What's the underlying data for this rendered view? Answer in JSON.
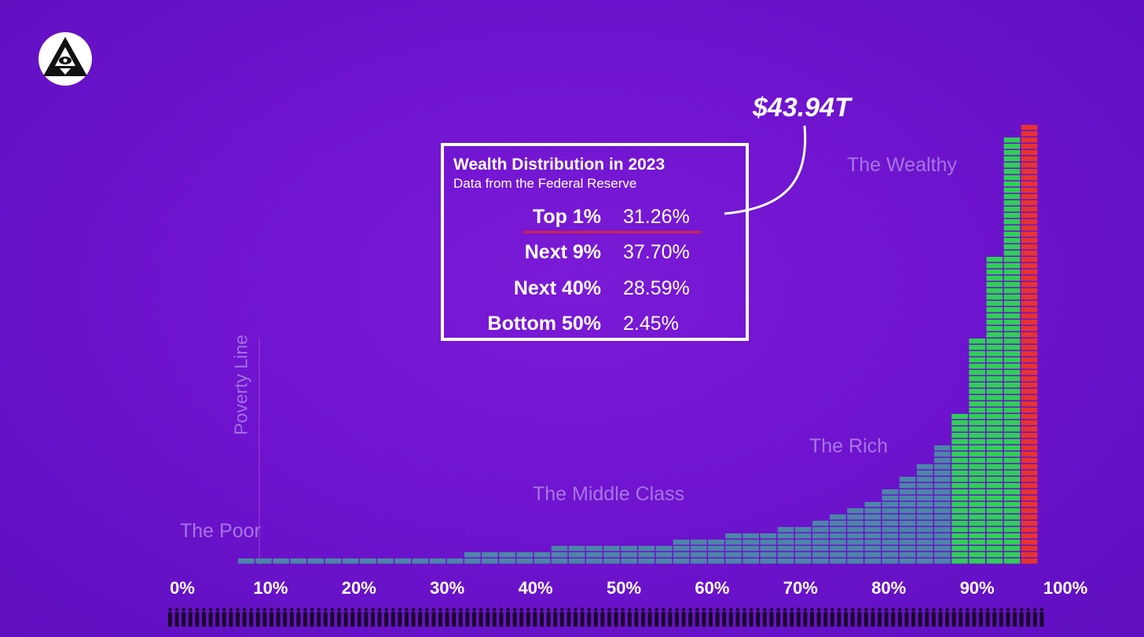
{
  "chart_data": {
    "type": "bar",
    "title": "Wealth Distribution in 2023",
    "subtitle": "Data from the Federal Reserve",
    "x_ticks": [
      "0%",
      "10%",
      "20%",
      "30%",
      "40%",
      "50%",
      "60%",
      "70%",
      "80%",
      "90%",
      "100%"
    ],
    "bar_heights_blocks": [
      1,
      1,
      1,
      1,
      1,
      1,
      1,
      1,
      1,
      1,
      1,
      1,
      1,
      2,
      2,
      2,
      2,
      2,
      3,
      3,
      3,
      3,
      3,
      3,
      3,
      4,
      4,
      4,
      5,
      5,
      5,
      6,
      6,
      7,
      8,
      9,
      10,
      12,
      14,
      16,
      19,
      24,
      36,
      49,
      68,
      70
    ],
    "series_colors": {
      "bottom_90": "#4c86a8",
      "next_9": "#2fcf57",
      "top_1": "#e8332f"
    },
    "groups": [
      {
        "name": "Top 1%",
        "share_percent": 31.26
      },
      {
        "name": "Next 9%",
        "share_percent": 37.7
      },
      {
        "name": "Next 40%",
        "share_percent": 28.59
      },
      {
        "name": "Bottom 50%",
        "share_percent": 2.45
      }
    ],
    "annotations": {
      "top_1_total": "$43.94T",
      "zones": [
        "The Poor",
        "The Middle Class",
        "The Rich",
        "The Wealthy"
      ],
      "poverty_line": "Poverty Line"
    }
  },
  "info_box": {
    "title": "Wealth Distribution in 2023",
    "subtitle": "Data from the Federal Reserve",
    "rows": [
      {
        "label": "Top 1%",
        "value": "31.26%"
      },
      {
        "label": "Next 9%",
        "value": "37.70%"
      },
      {
        "label": "Next 40%",
        "value": "28.59%"
      },
      {
        "label": "Bottom 50%",
        "value": "2.45%"
      }
    ]
  },
  "total": "$43.94T",
  "zones": {
    "poor": "The Poor",
    "middle": "The Middle Class",
    "rich": "The Rich",
    "wealthy": "The Wealthy"
  },
  "poverty_line": "Poverty Line",
  "logo": {
    "icon": "eye-triangle-icon"
  }
}
